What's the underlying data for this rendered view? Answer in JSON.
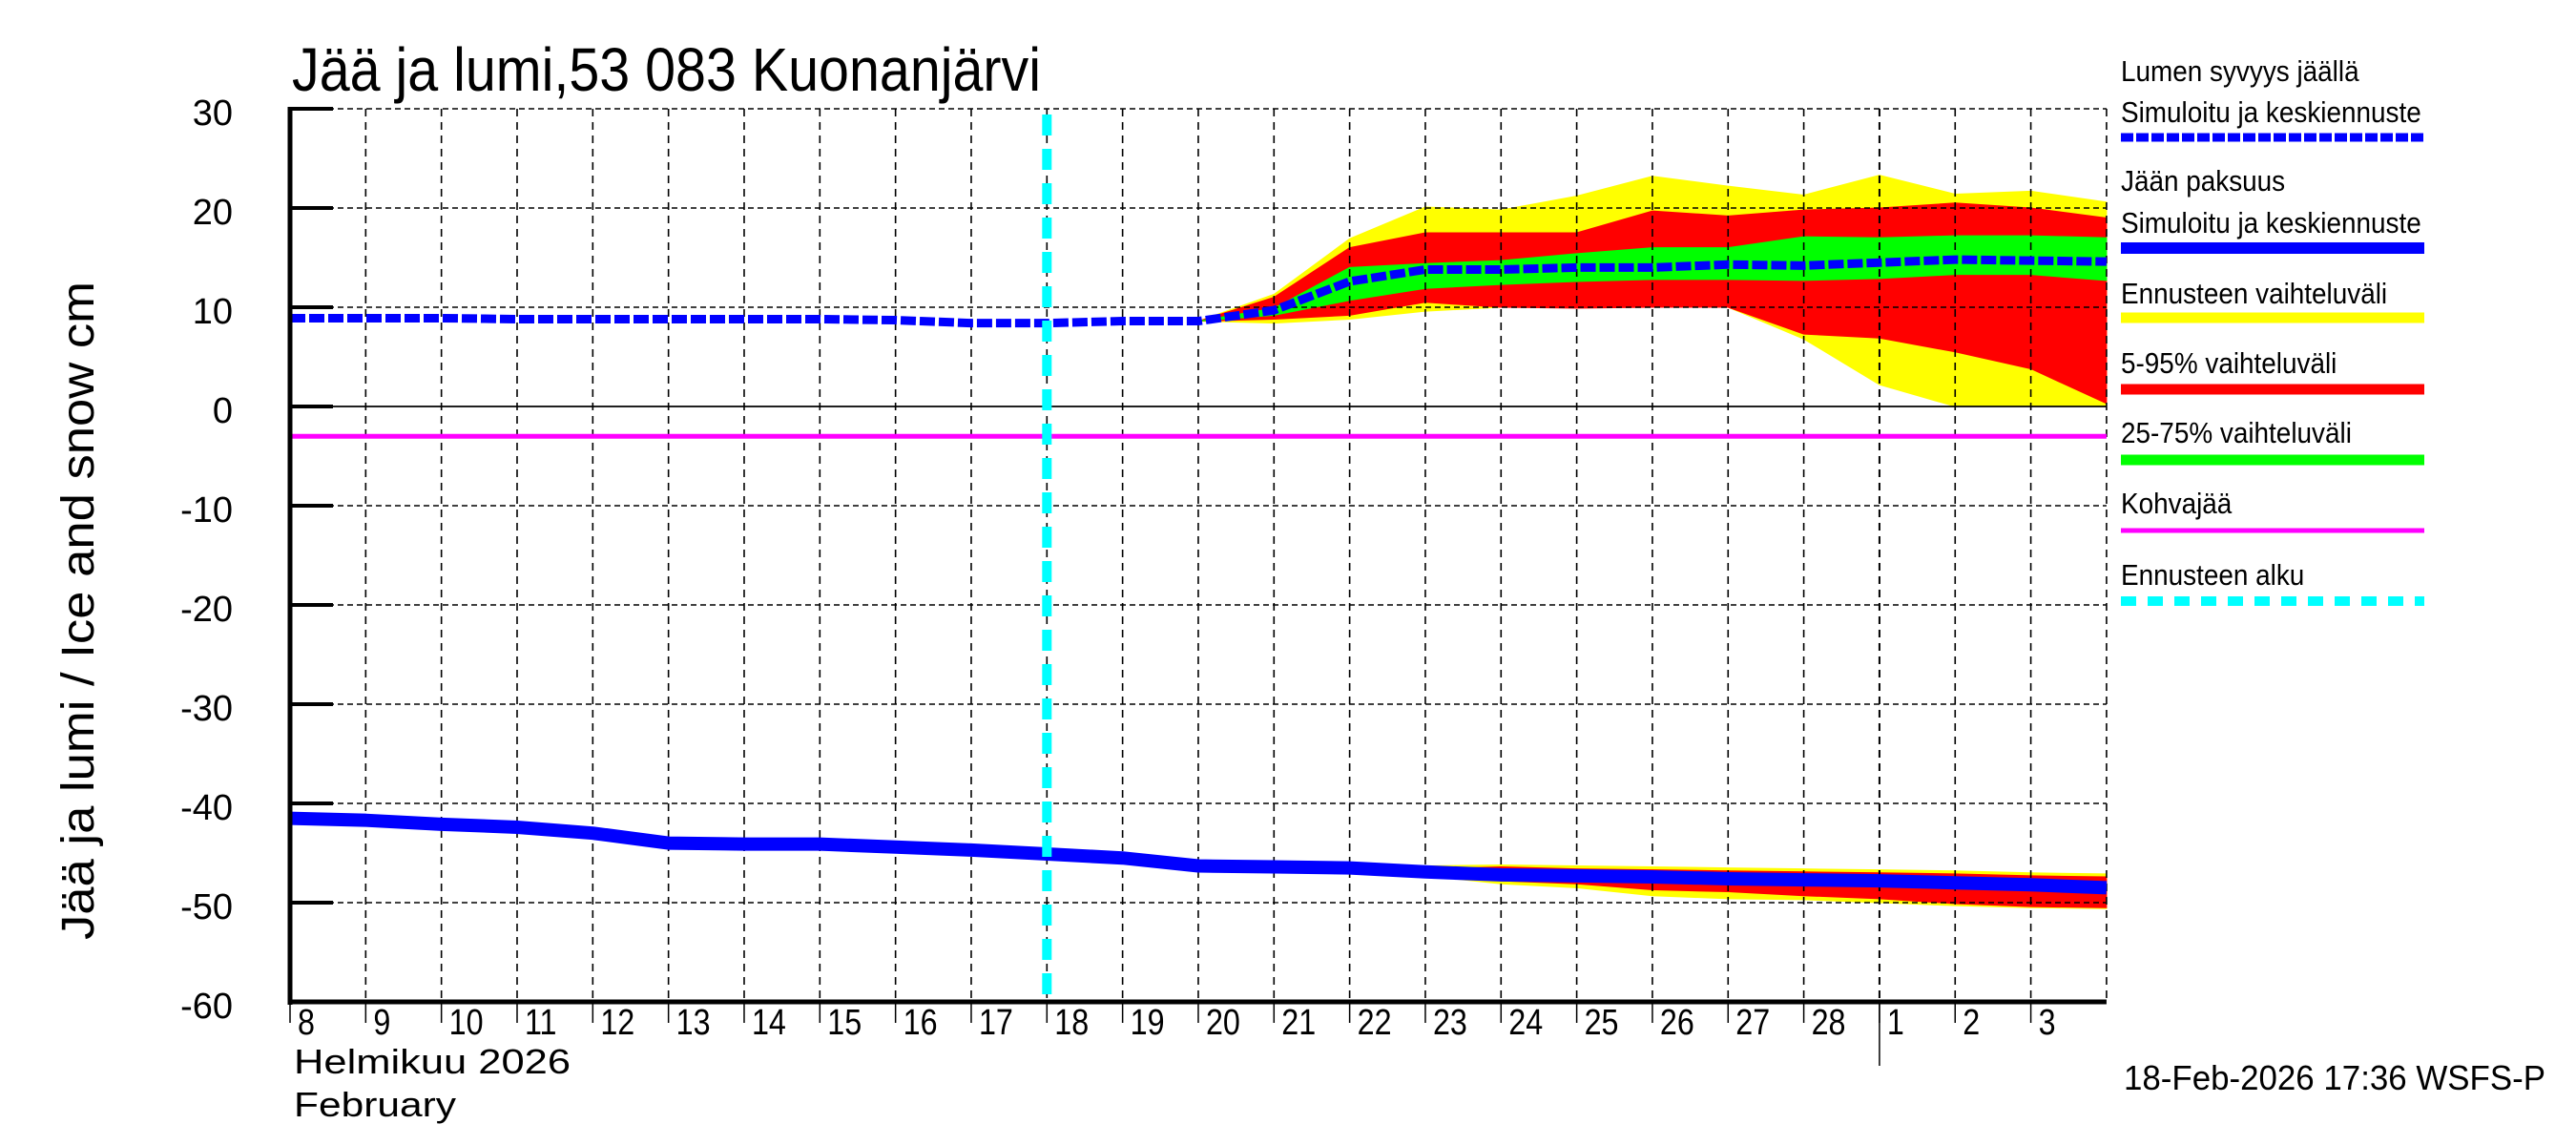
{
  "chart_data": {
    "type": "area",
    "title": "Jää ja lumi,53 083 Kuonanjärvi",
    "ylabel": "Jää ja lumi / Ice and snow    cm",
    "xlabel_line1": "Helmikuu  2026",
    "xlabel_line2": "February",
    "timestamp": "18-Feb-2026 17:36 WSFS-P",
    "ylim": [
      -60,
      30
    ],
    "yticks": [
      30,
      20,
      10,
      0,
      -10,
      -20,
      -30,
      -40,
      -50,
      -60
    ],
    "ytick_labels": [
      "30",
      "20",
      "10",
      "0",
      "-10",
      "-20",
      "-30",
      "-40",
      "-50",
      "-60"
    ],
    "grid": true,
    "legend_position": "right",
    "x_tick_labels": [
      "8",
      "9",
      "10",
      "11",
      "12",
      "13",
      "14",
      "15",
      "16",
      "17",
      "18",
      "19",
      "20",
      "21",
      "22",
      "23",
      "24",
      "25",
      "26",
      "27",
      "28",
      "1",
      "2",
      "3"
    ],
    "x_dates": [
      "2026-02-08",
      "2026-02-09",
      "2026-02-10",
      "2026-02-11",
      "2026-02-12",
      "2026-02-13",
      "2026-02-14",
      "2026-02-15",
      "2026-02-16",
      "2026-02-17",
      "2026-02-18",
      "2026-02-19",
      "2026-02-20",
      "2026-02-21",
      "2026-02-22",
      "2026-02-23",
      "2026-02-24",
      "2026-02-25",
      "2026-02-26",
      "2026-02-27",
      "2026-02-28",
      "2026-03-01",
      "2026-03-02",
      "2026-03-03",
      "2026-03-04"
    ],
    "x_range_days": 24,
    "month_separator_index": 21,
    "forecast_start_index": 10,
    "kohvajaa_level": -3,
    "snow_depth": {
      "name": "Lumen syvyys jäällä – Simuloitu ja keskiennuste",
      "color": "#0000ff",
      "style": "dashed",
      "values": [
        8.9,
        8.9,
        8.9,
        8.8,
        8.8,
        8.8,
        8.8,
        8.8,
        8.7,
        8.4,
        8.4,
        8.6,
        8.6,
        9.7,
        12.6,
        13.8,
        13.8,
        14.0,
        14.0,
        14.3,
        14.2,
        14.5,
        14.8,
        14.7,
        14.6
      ]
    },
    "snow_bands": {
      "start_index": 12,
      "yellow_top": [
        8.6,
        11.3,
        16.9,
        20.1,
        19.8,
        21.2,
        23.2,
        22.2,
        21.3,
        23.3,
        21.4,
        21.7,
        20.6
      ],
      "red_top": [
        8.6,
        11.0,
        16.0,
        17.5,
        17.5,
        17.5,
        19.7,
        19.2,
        19.8,
        20.0,
        20.5,
        20.0,
        19.0
      ],
      "green_top": [
        8.6,
        9.9,
        14.0,
        14.4,
        14.7,
        15.4,
        16.0,
        16.0,
        17.1,
        17.0,
        17.2,
        17.2,
        17.0
      ],
      "green_bottom": [
        8.6,
        9.2,
        10.7,
        11.9,
        12.3,
        12.6,
        12.8,
        12.8,
        12.7,
        12.9,
        13.3,
        13.3,
        12.7
      ],
      "red_bottom": [
        8.6,
        8.8,
        9.2,
        10.5,
        10.0,
        9.9,
        10.0,
        10.0,
        7.3,
        6.9,
        5.5,
        3.8,
        0.3
      ],
      "yellow_bottom": [
        8.6,
        8.4,
        8.8,
        9.6,
        10.0,
        10.0,
        10.0,
        10.0,
        6.8,
        2.2,
        0.0,
        0.0,
        0.0
      ]
    },
    "ice_thickness": {
      "name": "Jään paksuus – Simuloitu ja keskiennuste",
      "color": "#0000ff",
      "style": "solid",
      "values": [
        -41.5,
        -41.7,
        -42.1,
        -42.4,
        -43.0,
        -44.0,
        -44.1,
        -44.1,
        -44.4,
        -44.7,
        -45.1,
        -45.5,
        -46.3,
        -46.4,
        -46.5,
        -46.9,
        -47.2,
        -47.3,
        -47.4,
        -47.6,
        -47.7,
        -47.8,
        -48.0,
        -48.2,
        -48.5
      ]
    },
    "ice_bands": {
      "start_index": 12,
      "yellow_top": [
        -46.3,
        -46.4,
        -46.5,
        -46.3,
        -46.2,
        -46.3,
        -46.4,
        -46.5,
        -46.6,
        -46.7,
        -46.8,
        -47.0,
        -47.1
      ],
      "red_top": [
        -46.3,
        -46.4,
        -46.5,
        -46.6,
        -46.4,
        -46.6,
        -46.7,
        -46.8,
        -46.9,
        -47.0,
        -47.1,
        -47.3,
        -47.4
      ],
      "red_bottom": [
        -46.3,
        -46.4,
        -46.5,
        -47.1,
        -47.8,
        -48.1,
        -48.7,
        -48.9,
        -49.3,
        -49.6,
        -50.1,
        -50.4,
        -50.5
      ],
      "yellow_bottom": [
        -46.3,
        -46.4,
        -46.5,
        -47.3,
        -48.1,
        -48.5,
        -49.3,
        -49.6,
        -49.7,
        -50.0,
        -50.3,
        -50.5,
        -50.6
      ]
    },
    "legend": [
      {
        "label_1": "Lumen syvyys jäällä",
        "label_2": "Simuloitu ja keskiennuste",
        "color": "#0000ff",
        "style": "dashed"
      },
      {
        "label_1": "Jään paksuus",
        "label_2": "Simuloitu ja keskiennuste",
        "color": "#0000ff",
        "style": "solid"
      },
      {
        "label_1": "Ennusteen vaihteluväli",
        "color": "#ffff00",
        "style": "band"
      },
      {
        "label_1": "5-95% vaihteluväli",
        "color": "#ff0000",
        "style": "band"
      },
      {
        "label_1": "25-75% vaihteluväli",
        "color": "#00ff00",
        "style": "band"
      },
      {
        "label_1": "Kohvajää",
        "color": "#ff00ff",
        "style": "thin"
      },
      {
        "label_1": "Ennusteen alku",
        "color": "#00ffff",
        "style": "dotted"
      }
    ]
  },
  "colors": {
    "snow_line": "#0000ff",
    "ice_line": "#0000ff",
    "forecast_range": "#ffff00",
    "p5_95": "#ff0000",
    "p25_75": "#00ff00",
    "kohvajaa": "#ff00ff",
    "forecast_start": "#00ffff"
  }
}
